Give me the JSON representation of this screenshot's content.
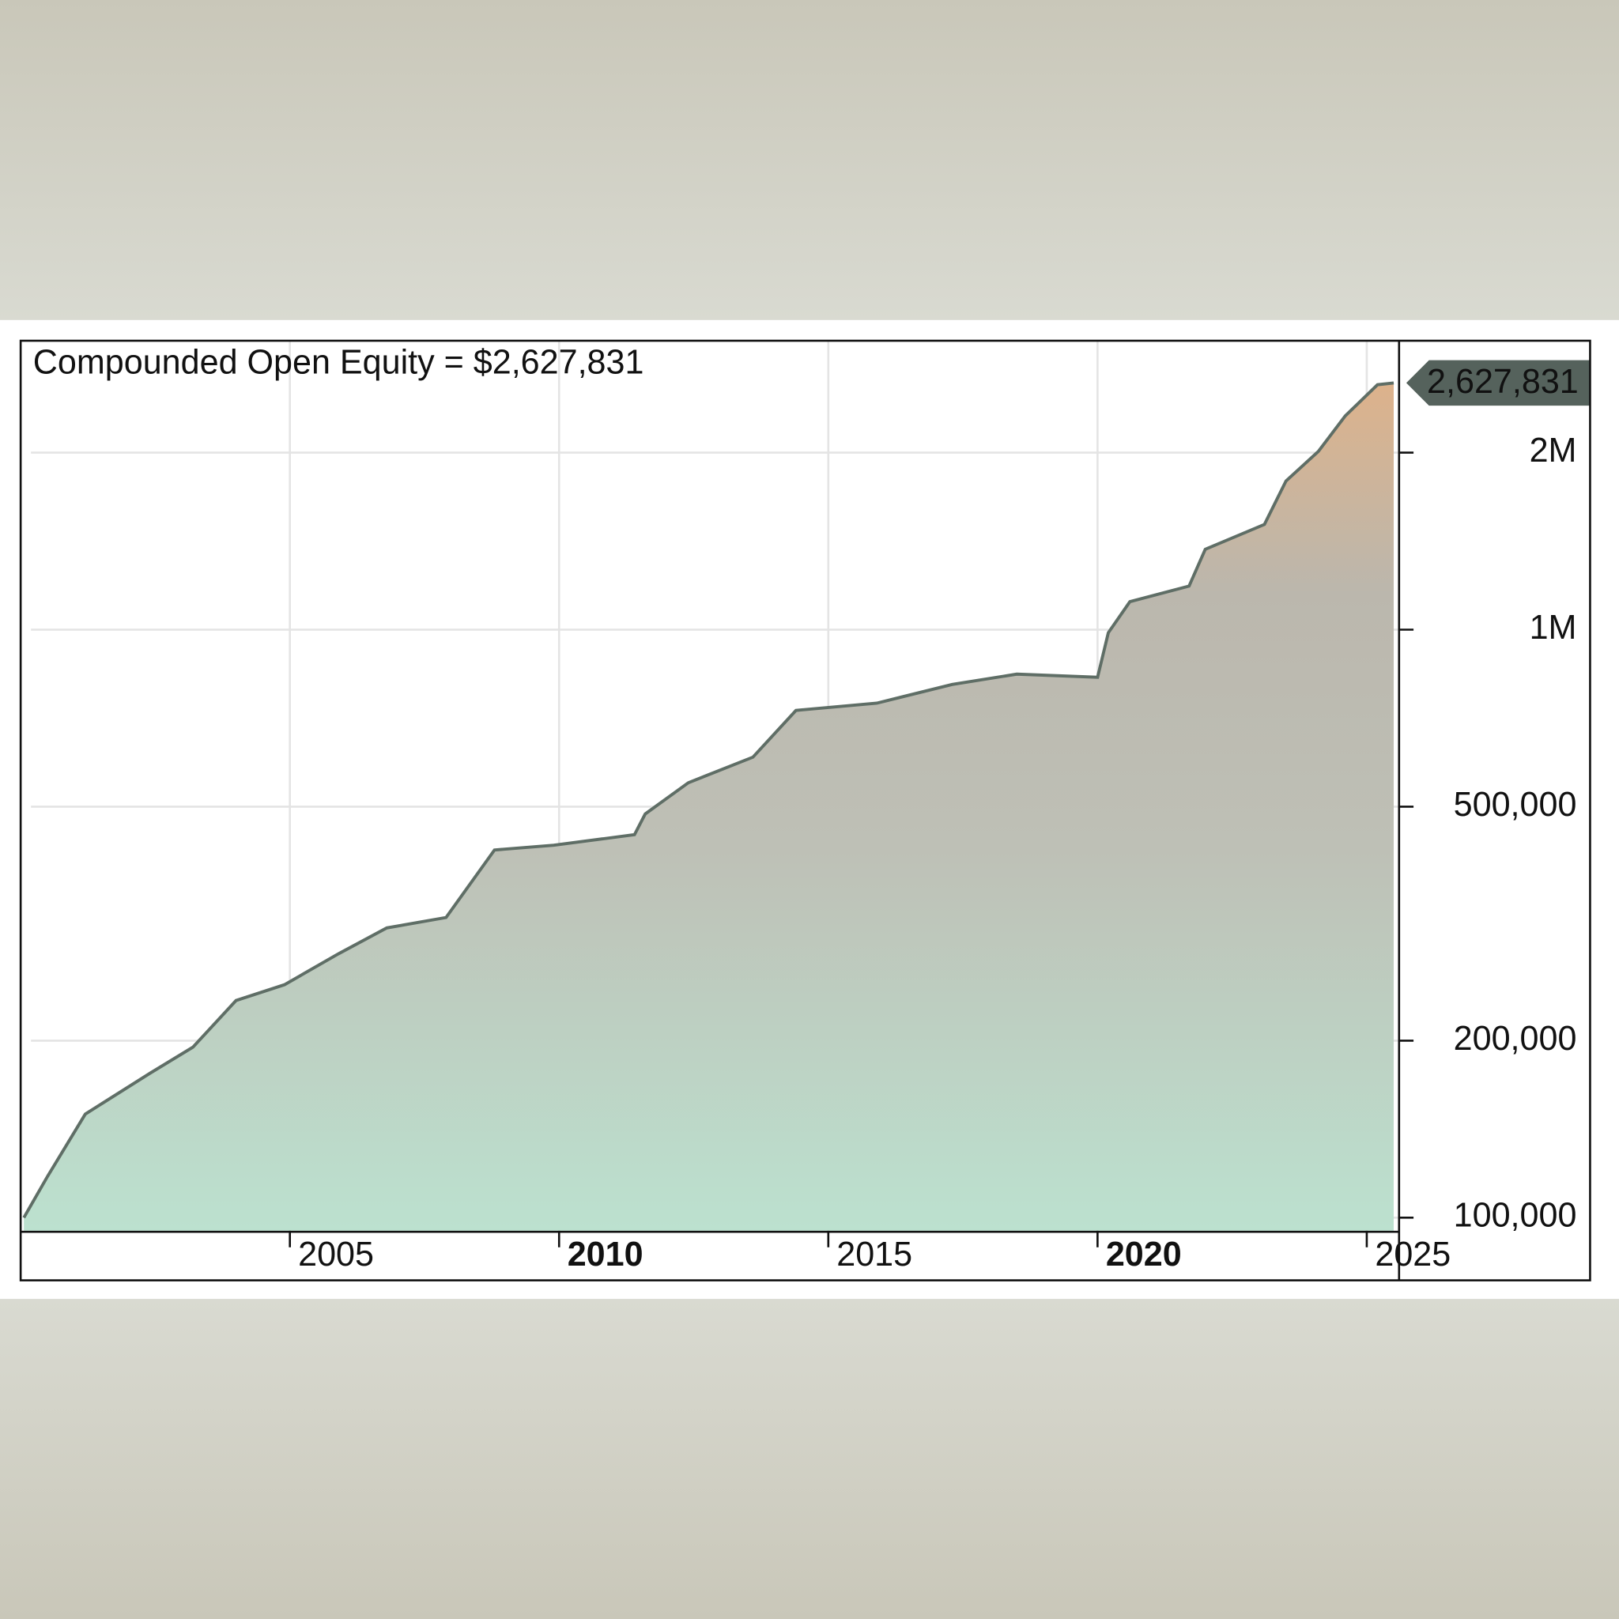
{
  "chart_data": {
    "type": "area",
    "title": "Compounded Open Equity = $2,627,831",
    "x": [
      2000.06,
      2000.5,
      2001.2,
      2002.4,
      2003.2,
      2004.0,
      2004.9,
      2005.9,
      2006.8,
      2007.9,
      2008.8,
      2009.9,
      2011.4,
      2011.6,
      2012.4,
      2013.6,
      2014.4,
      2015.9,
      2017.3,
      2018.5,
      2020.0,
      2020.2,
      2020.6,
      2021.7,
      2022.0,
      2023.1,
      2023.5,
      2024.1,
      2024.6,
      2025.2,
      2025.5
    ],
    "values": [
      100000,
      117600,
      150000,
      176000,
      195000,
      234000,
      249000,
      281000,
      311000,
      324000,
      422000,
      430000,
      448000,
      486000,
      549000,
      607000,
      729000,
      750000,
      807000,
      840000,
      830000,
      988000,
      1116000,
      1186000,
      1370000,
      1510000,
      1790000,
      2010000,
      2310000,
      2610000,
      2627831
    ],
    "last_value_label": "2,627,831",
    "color": "#5f6e66",
    "log_scale_y": true,
    "grid": true,
    "xlim": [
      2000,
      2025.6
    ],
    "xticks": [
      2005,
      2010,
      2015,
      2020,
      2025
    ],
    "ylim": [
      95000,
      3100000
    ],
    "yticks": [
      {
        "value": 100000,
        "label": "100,000"
      },
      {
        "value": 200000,
        "label": "200,000"
      },
      {
        "value": 500000,
        "label": "500,000"
      },
      {
        "value": 1000000,
        "label": "1M"
      },
      {
        "value": 2000000,
        "label": "2M"
      }
    ]
  }
}
